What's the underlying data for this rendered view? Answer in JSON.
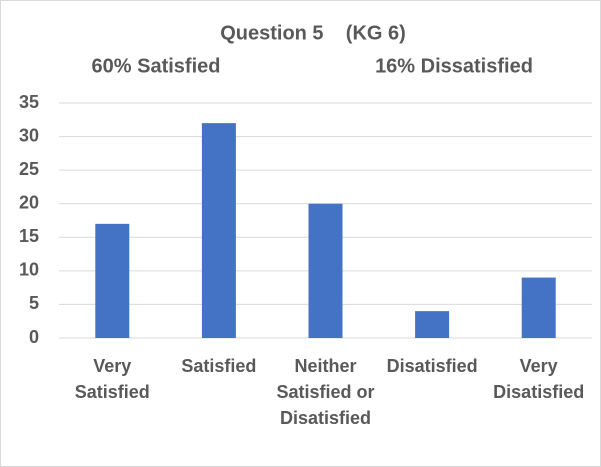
{
  "chart_data": {
    "type": "bar",
    "title": "Question 5    (KG 6)",
    "subtitles": [
      "60% Satisfied",
      "16% Dissatisfied"
    ],
    "categories": [
      "Very Satisfied",
      "Satisfied",
      "Neither Satisfied or Disatisfied",
      "Disatisfied",
      "Very Disatisfied"
    ],
    "values": [
      17,
      32,
      20,
      4,
      9
    ],
    "color": "#4472c4",
    "ylim": [
      0,
      35
    ],
    "yticks": [
      0,
      5,
      10,
      15,
      20,
      25,
      30,
      35
    ],
    "grid": true
  }
}
